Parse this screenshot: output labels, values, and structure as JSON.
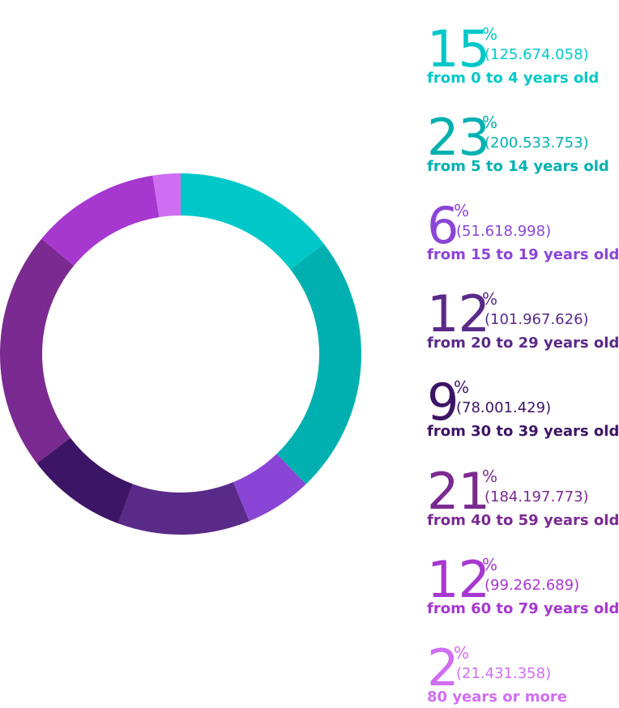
{
  "chart_data": {
    "type": "pie",
    "style": "donut",
    "categories": [
      "from 0 to 4 years old",
      "from 5 to 14 years old",
      "from 15 to 19 years old",
      "from 20 to 29 years old",
      "from 30 to 39 years old",
      "from 40 to 59 years old",
      "from 60 to 79 years old",
      "80 years or more"
    ],
    "percent_labels": [
      "15",
      "23",
      "6",
      "12",
      "9",
      "21",
      "12",
      "2"
    ],
    "percent_sign": "%",
    "count_labels": [
      "(125.674.058)",
      "(200.533.753)",
      "(51.618.998)",
      "(101.967.626)",
      "(78.001.429)",
      "(184.197.773)",
      "(99.262.689)",
      "(21.431.358)"
    ],
    "values": [
      125674058,
      200533753,
      51618998,
      101967626,
      78001429,
      184197773,
      99262689,
      21431358
    ],
    "colors": [
      "#00c8c8",
      "#00b0b0",
      "#8b45d6",
      "#5a2a88",
      "#3d1566",
      "#7a2a90",
      "#a637cf",
      "#d06ef2"
    ],
    "legend_placement": "right"
  }
}
